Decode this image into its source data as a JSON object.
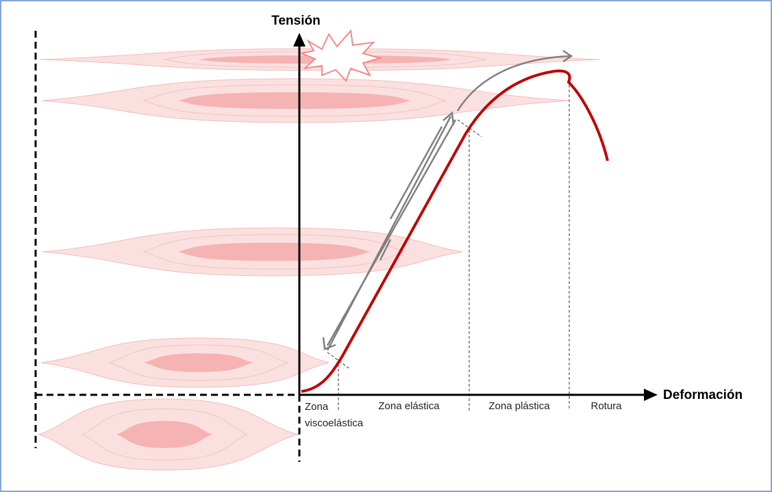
{
  "axes": {
    "y_label": "Tensión",
    "x_label": "Deformación"
  },
  "zones": [
    {
      "lines": [
        "Zona",
        "viscoelástica"
      ]
    },
    {
      "lines": [
        "Zona elástica"
      ]
    },
    {
      "lines": [
        "Zona plástica"
      ]
    },
    {
      "lines": [
        "Rotura"
      ]
    }
  ]
}
